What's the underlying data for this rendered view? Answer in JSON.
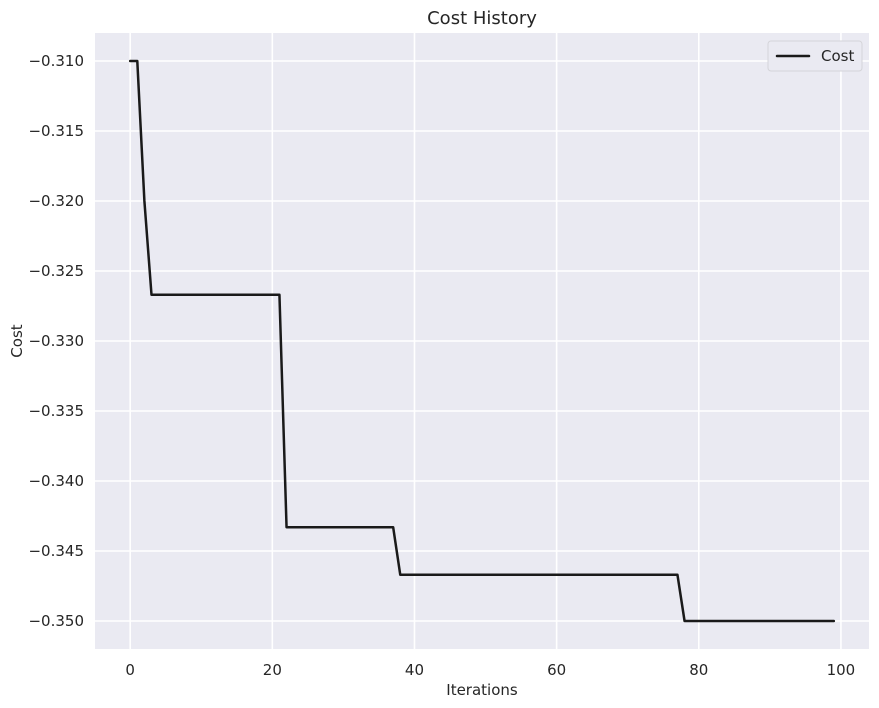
{
  "chart_data": {
    "type": "line",
    "title": "Cost History",
    "xlabel": "Iterations",
    "ylabel": "Cost",
    "xlim": [
      -4.95,
      103.95
    ],
    "ylim": [
      -0.352,
      -0.308
    ],
    "x_ticks": [
      0,
      20,
      40,
      60,
      80,
      100
    ],
    "x_tick_labels": [
      "0",
      "20",
      "40",
      "60",
      "80",
      "100"
    ],
    "y_ticks": [
      -0.31,
      -0.315,
      -0.32,
      -0.325,
      -0.33,
      -0.335,
      -0.34,
      -0.345,
      -0.35
    ],
    "y_tick_labels": [
      "−0.310",
      "−0.315",
      "−0.320",
      "−0.325",
      "−0.330",
      "−0.335",
      "−0.340",
      "−0.345",
      "−0.350"
    ],
    "grid": true,
    "legend_position": "top-right",
    "series": [
      {
        "name": "Cost",
        "color": "#1a1a1a",
        "x": [
          0,
          1,
          2,
          3,
          21,
          22,
          37,
          38,
          77,
          78,
          99
        ],
        "y": [
          -0.31,
          -0.31,
          -0.32,
          -0.3267,
          -0.3267,
          -0.3433,
          -0.3433,
          -0.3467,
          -0.3467,
          -0.35,
          -0.35
        ]
      }
    ]
  },
  "colors": {
    "plot_background": "#eaeaf2",
    "grid": "#ffffff",
    "text": "#262626",
    "line": "#1a1a1a"
  }
}
